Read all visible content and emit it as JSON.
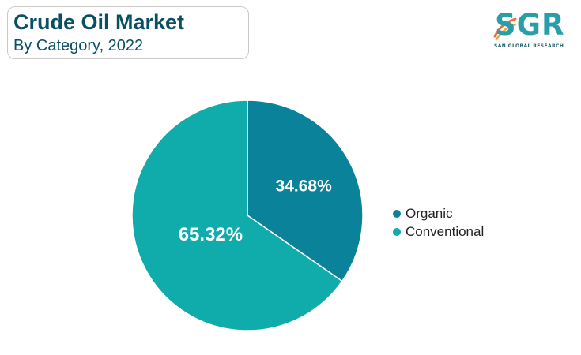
{
  "header": {
    "title": "Crude Oil Market",
    "subtitle": "By Category, 2022"
  },
  "logo": {
    "letters": "SGR",
    "tagline": "SAN GLOBAL RESEARCH",
    "color": "#2a9ea7",
    "accent_colors": [
      "#f26b3a",
      "#f7a541"
    ]
  },
  "chart_data": {
    "type": "pie",
    "title": "Crude Oil Market",
    "subtitle": "By Category, 2022",
    "legend_position": "right",
    "slices": [
      {
        "label": "Organic",
        "value": 34.68,
        "display": "34.68%",
        "color": "#0a8299"
      },
      {
        "label": "Conventional",
        "value": 65.32,
        "display": "65.32%",
        "color": "#10abab"
      }
    ]
  }
}
